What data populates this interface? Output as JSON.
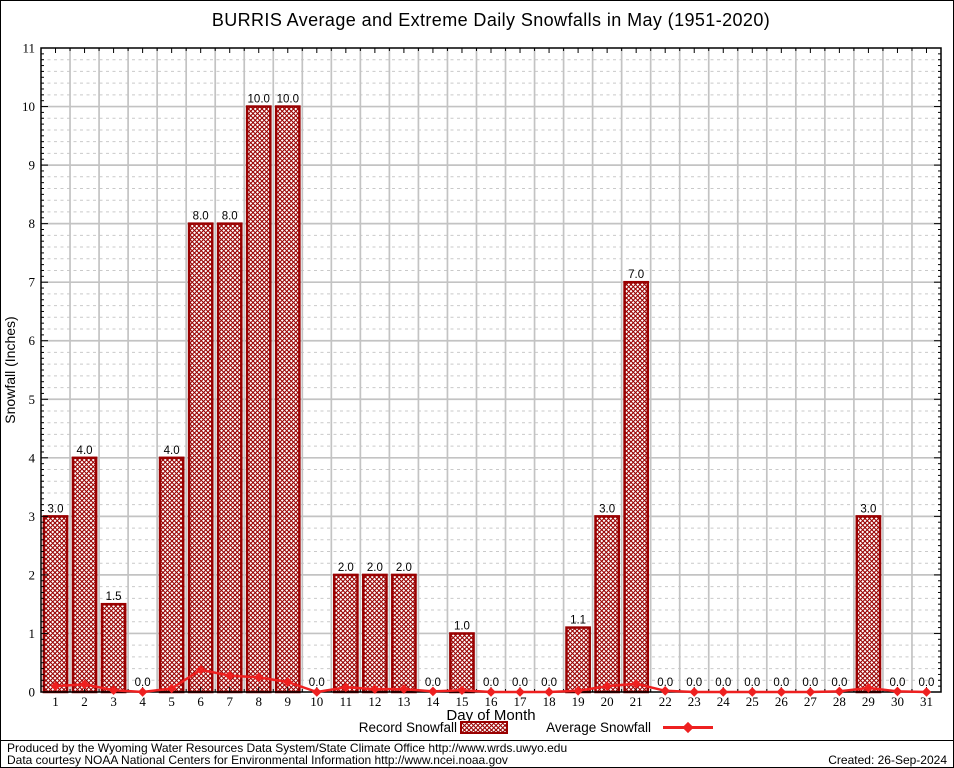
{
  "page": {
    "title": "BURRIS Average and Extreme Daily Snowfalls in May (1951-2020)",
    "footer_line1": "Produced by the Wyoming Water Resources Data System/State Climate Office http://www.wrds.uwyo.edu",
    "footer_line2": "Data courtesy NOAA National Centers for Environmental Information http://www.ncei.noaa.gov",
    "created": "Created: 26-Sep-2024"
  },
  "axes": {
    "x_label": "Day of Month",
    "y_label": "Snowfall (Inches)"
  },
  "legend": {
    "record_label": "Record Snowfall",
    "average_label": "Average Snowfall"
  },
  "colors": {
    "bar_border": "#990000",
    "bar_hatch": "#990000",
    "avg_line": "#ee2020",
    "grid_major": "#c3c3c3",
    "grid_minor": "#c9c9c9",
    "axis": "#000000",
    "text": "#000000"
  },
  "chart_data": {
    "type": "bar",
    "title": "BURRIS Average and Extreme Daily Snowfalls in May (1951-2020)",
    "xlabel": "Day of Month",
    "ylabel": "Snowfall (Inches)",
    "categories": [
      1,
      2,
      3,
      4,
      5,
      6,
      7,
      8,
      9,
      10,
      11,
      12,
      13,
      14,
      15,
      16,
      17,
      18,
      19,
      20,
      21,
      22,
      23,
      24,
      25,
      26,
      27,
      28,
      29,
      30,
      31
    ],
    "ylim": [
      0,
      11
    ],
    "y_tick_step": 1,
    "y_minor_step": 0.2,
    "grid": true,
    "legend_position": "bottom",
    "series": [
      {
        "name": "Record Snowfall",
        "type": "bar",
        "values": [
          3.0,
          4.0,
          1.5,
          0.0,
          4.0,
          8.0,
          8.0,
          10.0,
          10.0,
          0.0,
          2.0,
          2.0,
          2.0,
          0.0,
          1.0,
          0.0,
          0.0,
          0.0,
          1.1,
          3.0,
          7.0,
          0.0,
          0.0,
          0.0,
          0.0,
          0.0,
          0.0,
          0.0,
          3.0,
          0.0,
          0.0
        ],
        "labels": [
          "3.0",
          "4.0",
          "1.5",
          "0.0",
          "4.0",
          "8.0",
          "8.0",
          "10.0",
          "10.0",
          "0.0",
          "2.0",
          "2.0",
          "2.0",
          "0.0",
          "1.0",
          "0.0",
          "0.0",
          "0.0",
          "1.1",
          "3.0",
          "7.0",
          "0.0",
          "0.0",
          "0.0",
          "0.0",
          "0.0",
          "0.0",
          "0.0",
          "3.0",
          "0.0",
          "0.0"
        ]
      },
      {
        "name": "Average Snowfall",
        "type": "line",
        "values": [
          0.1,
          0.13,
          0.03,
          0.0,
          0.06,
          0.38,
          0.28,
          0.25,
          0.17,
          0.0,
          0.08,
          0.05,
          0.05,
          0.01,
          0.03,
          0.0,
          0.0,
          0.0,
          0.02,
          0.1,
          0.14,
          0.02,
          0.0,
          0.0,
          0.0,
          0.0,
          0.0,
          0.01,
          0.07,
          0.01,
          0.0
        ]
      }
    ]
  }
}
